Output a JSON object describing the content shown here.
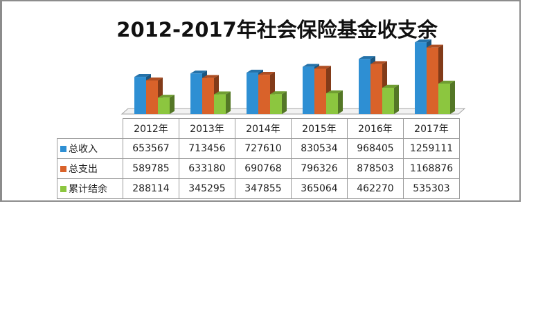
{
  "chart_data": {
    "type": "bar",
    "title": "2012-2017年社会保险基金收支余",
    "categories": [
      "2012年",
      "2013年",
      "2014年",
      "2015年",
      "2016年",
      "2017年"
    ],
    "series": [
      {
        "name": "总收入",
        "color": "#2e8fd3",
        "values": [
          653567,
          713456,
          727610,
          830534,
          968405,
          1259111
        ]
      },
      {
        "name": "总支出",
        "color": "#d9622a",
        "values": [
          589785,
          633180,
          690768,
          796326,
          878503,
          1168876
        ]
      },
      {
        "name": "累计结余",
        "color": "#8cc63f",
        "values": [
          288114,
          345295,
          347855,
          365064,
          462270,
          535303
        ]
      }
    ],
    "ylim": [
      0,
      1300000
    ],
    "legend": "table",
    "data_table": true,
    "grid": false
  }
}
